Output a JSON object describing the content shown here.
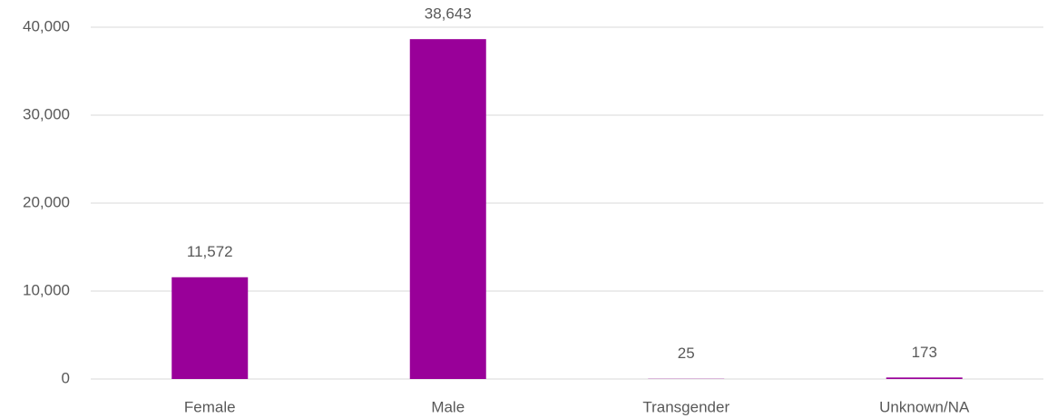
{
  "chart_data": {
    "type": "bar",
    "categories": [
      "Female",
      "Male",
      "Transgender",
      "Unknown/NA"
    ],
    "values": [
      11572,
      38643,
      25,
      173
    ],
    "value_labels": [
      "11,572",
      "38,643",
      "25",
      "173"
    ],
    "color": "#990099",
    "ylim": [
      0,
      40000
    ],
    "yticks": [
      0,
      {
        "value": 10000,
        "label": "10,000"
      },
      {
        "value": 20000,
        "label": "20,000"
      },
      {
        "value": 30000,
        "label": "30,000"
      },
      {
        "value": 40000,
        "label": "40,000"
      }
    ],
    "grid": true
  }
}
